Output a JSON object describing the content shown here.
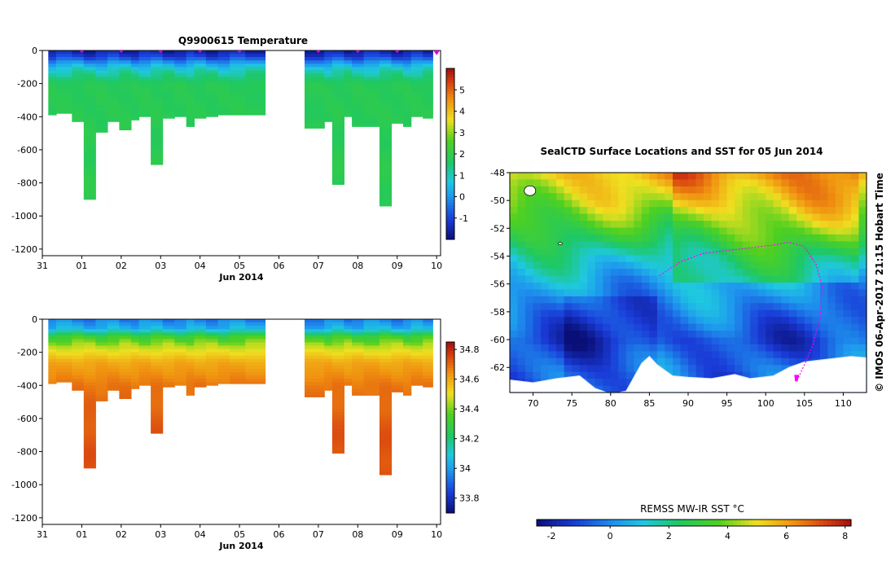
{
  "chart_data": [
    {
      "type": "heatmap",
      "title": "Q9900615  Temperature",
      "xlabel": "Jun 2014",
      "ylabel": "",
      "x_tick_labels": [
        "31",
        "01",
        "02",
        "03",
        "04",
        "05",
        "06",
        "07",
        "08",
        "09",
        "10"
      ],
      "x_tick_values": [
        0,
        1,
        2,
        3,
        4,
        5,
        6,
        7,
        8,
        9,
        10
      ],
      "xlim": [
        0,
        10.1
      ],
      "y_tick_values": [
        0,
        -200,
        -400,
        -600,
        -800,
        -1000,
        -1200
      ],
      "ylim": [
        -1240,
        0
      ],
      "profile_times": [
        0.3,
        0.5,
        0.9,
        1.2,
        1.5,
        1.8,
        2.1,
        2.4,
        2.6,
        2.9,
        3.2,
        3.5,
        3.8,
        4.0,
        4.3,
        4.6,
        4.9,
        5.3,
        6.8,
        7.3,
        7.5,
        7.8,
        8.0,
        8.3,
        8.7,
        9.0,
        9.3,
        9.5,
        9.8
      ],
      "profile_max_depth": [
        -390,
        -380,
        -430,
        -900,
        -495,
        -430,
        -480,
        -420,
        -400,
        -690,
        -410,
        -400,
        -460,
        -410,
        -400,
        -390,
        -390,
        -390,
        -470,
        -430,
        -810,
        -400,
        -460,
        -460,
        -940,
        -440,
        -460,
        -400,
        -410
      ],
      "gaps": [
        [
          5.8,
          6.8
        ]
      ],
      "surface_markers": [
        1,
        2,
        3,
        4,
        5,
        7,
        8,
        9,
        10
      ],
      "marker_color": "#d400d4",
      "colorbar": {
        "range": [
          -2,
          6
        ],
        "ticks": [
          -1,
          0,
          1,
          2,
          3,
          4,
          5
        ]
      },
      "depth_profile": [
        {
          "depth": 0,
          "value": -1.6
        },
        {
          "depth": -40,
          "value": -1.0
        },
        {
          "depth": -80,
          "value": 0.2
        },
        {
          "depth": -120,
          "value": 1.0
        },
        {
          "depth": -200,
          "value": 1.8
        },
        {
          "depth": -1000,
          "value": 1.9
        }
      ]
    },
    {
      "type": "heatmap",
      "title": "",
      "xlabel": "Jun 2014",
      "ylabel": "",
      "x_tick_labels": [
        "31",
        "01",
        "02",
        "03",
        "04",
        "05",
        "06",
        "07",
        "08",
        "09",
        "10"
      ],
      "x_tick_values": [
        0,
        1,
        2,
        3,
        4,
        5,
        6,
        7,
        8,
        9,
        10
      ],
      "xlim": [
        0,
        10.1
      ],
      "y_tick_values": [
        0,
        -200,
        -400,
        -600,
        -800,
        -1000,
        -1200
      ],
      "ylim": [
        -1240,
        0
      ],
      "colorbar": {
        "range": [
          33.7,
          34.85
        ],
        "ticks": [
          "33.8",
          "34",
          "34.2",
          "34.4",
          "34.6",
          "34.8"
        ],
        "tick_values": [
          33.8,
          34.0,
          34.2,
          34.4,
          34.6,
          34.8
        ]
      },
      "depth_profile": [
        {
          "depth": 0,
          "value": 33.95
        },
        {
          "depth": -60,
          "value": 34.05
        },
        {
          "depth": -100,
          "value": 34.3
        },
        {
          "depth": -160,
          "value": 34.45
        },
        {
          "depth": -260,
          "value": 34.6
        },
        {
          "depth": -400,
          "value": 34.68
        },
        {
          "depth": -600,
          "value": 34.72
        },
        {
          "depth": -1000,
          "value": 34.74
        }
      ]
    },
    {
      "type": "heatmap",
      "title": "SealCTD Surface Locations and SST for 05 Jun 2014",
      "xlabel": "",
      "ylabel": "",
      "x_tick_values": [
        70,
        75,
        80,
        85,
        90,
        95,
        100,
        105,
        110
      ],
      "xlim": [
        67,
        113
      ],
      "y_tick_labels": [
        "-48",
        "-50",
        "-52",
        "-54",
        "-56",
        "-58",
        "-60",
        "-62"
      ],
      "y_tick_values": [
        -48,
        -50,
        -52,
        -54,
        -56,
        -58,
        -60,
        -62
      ],
      "ylim": [
        -63.8,
        -48
      ],
      "side_text": "© IMOS 06-Apr-2017 21:15 Hobart Time",
      "colorbar": {
        "label": "REMSS MW-IR SST °C",
        "range": [
          -2.5,
          8.2
        ],
        "ticks": [
          -2,
          0,
          2,
          4,
          6,
          8
        ]
      },
      "sst_gradient": [
        {
          "lat": -48,
          "value": 5.6
        },
        {
          "lat": -50,
          "value": 4.5
        },
        {
          "lat": -52,
          "value": 3.0
        },
        {
          "lat": -54,
          "value": 1.4
        },
        {
          "lat": -56,
          "value": 0.5
        },
        {
          "lat": -58,
          "value": -0.3
        },
        {
          "lat": -60,
          "value": -1.0
        },
        {
          "lat": -62,
          "value": -0.3
        }
      ],
      "antarctic_coast": [
        [
          67,
          -62.9
        ],
        [
          70,
          -63.1
        ],
        [
          73,
          -62.8
        ],
        [
          76,
          -62.6
        ],
        [
          78,
          -63.5
        ],
        [
          80,
          -63.9
        ],
        [
          82,
          -63.7
        ],
        [
          84,
          -61.7
        ],
        [
          85,
          -61.2
        ],
        [
          86,
          -61.8
        ],
        [
          88,
          -62.6
        ],
        [
          90,
          -62.7
        ],
        [
          93,
          -62.8
        ],
        [
          96,
          -62.5
        ],
        [
          98,
          -62.8
        ],
        [
          101,
          -62.6
        ],
        [
          103,
          -62.0
        ],
        [
          105,
          -61.6
        ],
        [
          108,
          -61.4
        ],
        [
          111,
          -61.2
        ],
        [
          113,
          -61.3
        ]
      ],
      "seal_track": [
        [
          86.3,
          -55.4
        ],
        [
          89,
          -54.4
        ],
        [
          92,
          -53.8
        ],
        [
          95,
          -53.6
        ],
        [
          98,
          -53.4
        ],
        [
          101,
          -53.2
        ],
        [
          103,
          -53.0
        ],
        [
          105,
          -53.3
        ],
        [
          106.5,
          -54.6
        ],
        [
          107.3,
          -56.2
        ],
        [
          107,
          -58.5
        ],
        [
          106,
          -60.5
        ],
        [
          105,
          -61.8
        ],
        [
          104,
          -63.0
        ]
      ],
      "track_color": "#ff00ff"
    }
  ]
}
